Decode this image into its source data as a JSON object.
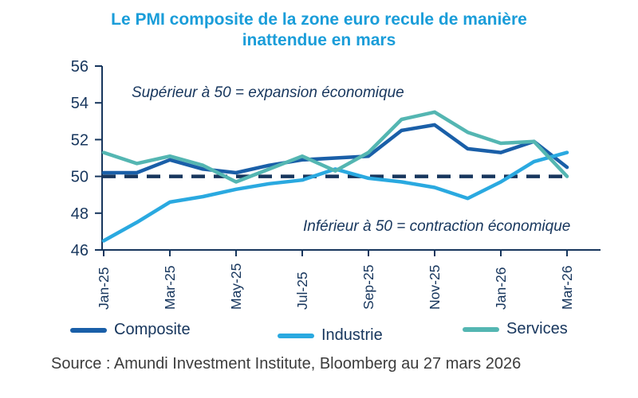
{
  "title": "Le PMI composite de la zone euro recule de manière inattendue en mars",
  "annotations": {
    "above_line": "Supérieur à 50 = expansion économique",
    "below_line": "Inférieur à 50 = contraction économique"
  },
  "source": "Source : Amundi Investment Institute, Bloomberg au 27 mars 2026",
  "colors": {
    "title": "#1a9dd9",
    "axis_and_text": "#17365d",
    "reference_line": "#17365d",
    "composite": "#1a5fa8",
    "industrie": "#2aa9e0",
    "services": "#54b6b2",
    "source_text": "#3c3c3c"
  },
  "legend": [
    {
      "label": "Composite",
      "color": "#1a5fa8"
    },
    {
      "label": "Industrie",
      "color": "#2aa9e0"
    },
    {
      "label": "Services",
      "color": "#54b6b2"
    }
  ],
  "chart_data": {
    "type": "line",
    "x": [
      "Jan-25",
      "Feb-25",
      "Mar-25",
      "Apr-25",
      "May-25",
      "Jun-25",
      "Jul-25",
      "Aug-25",
      "Sep-25",
      "Oct-25",
      "Nov-25",
      "Dec-25",
      "Jan-26",
      "Feb-26",
      "Mar-26"
    ],
    "x_tick_labels": [
      "Jan-25",
      "Mar-25",
      "May-25",
      "Jul-25",
      "Sep-25",
      "Nov-25",
      "Jan-26",
      "Mar-26"
    ],
    "series": [
      {
        "name": "Composite",
        "color": "#1a5fa8",
        "values": [
          50.2,
          50.2,
          50.9,
          50.4,
          50.2,
          50.6,
          50.9,
          51.0,
          51.1,
          52.5,
          52.8,
          51.5,
          51.3,
          51.9,
          50.5
        ]
      },
      {
        "name": "Industrie",
        "color": "#2aa9e0",
        "values": [
          46.5,
          47.5,
          48.6,
          48.9,
          49.3,
          49.6,
          49.8,
          50.4,
          49.9,
          49.7,
          49.4,
          48.8,
          49.7,
          50.8,
          51.3
        ]
      },
      {
        "name": "Services",
        "color": "#54b6b2",
        "values": [
          51.3,
          50.7,
          51.1,
          50.6,
          49.7,
          50.4,
          51.1,
          50.3,
          51.3,
          53.1,
          53.5,
          52.4,
          51.8,
          51.9,
          50.0
        ]
      }
    ],
    "ylim": [
      46,
      56
    ],
    "yticks": [
      46,
      48,
      50,
      52,
      54,
      56
    ],
    "reference_line": 50,
    "grid": false,
    "legend_position": "bottom",
    "xlabel": "",
    "ylabel": ""
  }
}
